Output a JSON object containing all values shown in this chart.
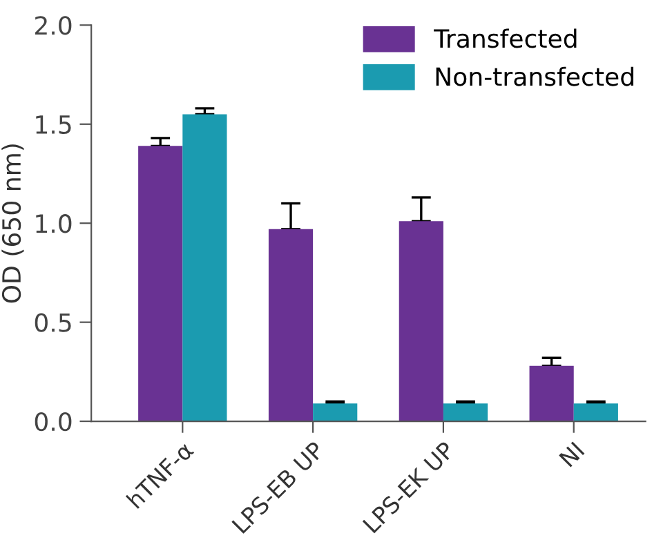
{
  "chart_data": {
    "type": "bar",
    "ylabel": "OD (650 nm)",
    "categories": [
      "hTNF-α",
      "LPS-EB UP",
      "LPS-EK UP",
      "NI"
    ],
    "series": [
      {
        "name": "Transfected",
        "color": "#693293",
        "values": [
          1.39,
          0.97,
          1.01,
          0.28
        ],
        "errors": [
          [
            1.39,
            1.43
          ],
          [
            0.97,
            1.1
          ],
          [
            1.01,
            1.13
          ],
          [
            0.28,
            0.32
          ]
        ]
      },
      {
        "name": "Non-transfected",
        "color": "#1b9bb0",
        "values": [
          1.55,
          0.09,
          0.09,
          0.09
        ],
        "errors": [
          [
            1.55,
            1.58
          ],
          [
            0.09,
            0.1
          ],
          [
            0.09,
            0.1
          ],
          [
            0.09,
            0.1
          ]
        ]
      }
    ],
    "ylim": [
      0,
      2.0
    ],
    "yticks": [
      {
        "value": 0,
        "label": "0.0"
      },
      0.5,
      {
        "value": 1,
        "label": "1.0"
      },
      1.5,
      {
        "value": 2,
        "label": "2.0"
      }
    ],
    "grid": false,
    "legend": "top right"
  }
}
